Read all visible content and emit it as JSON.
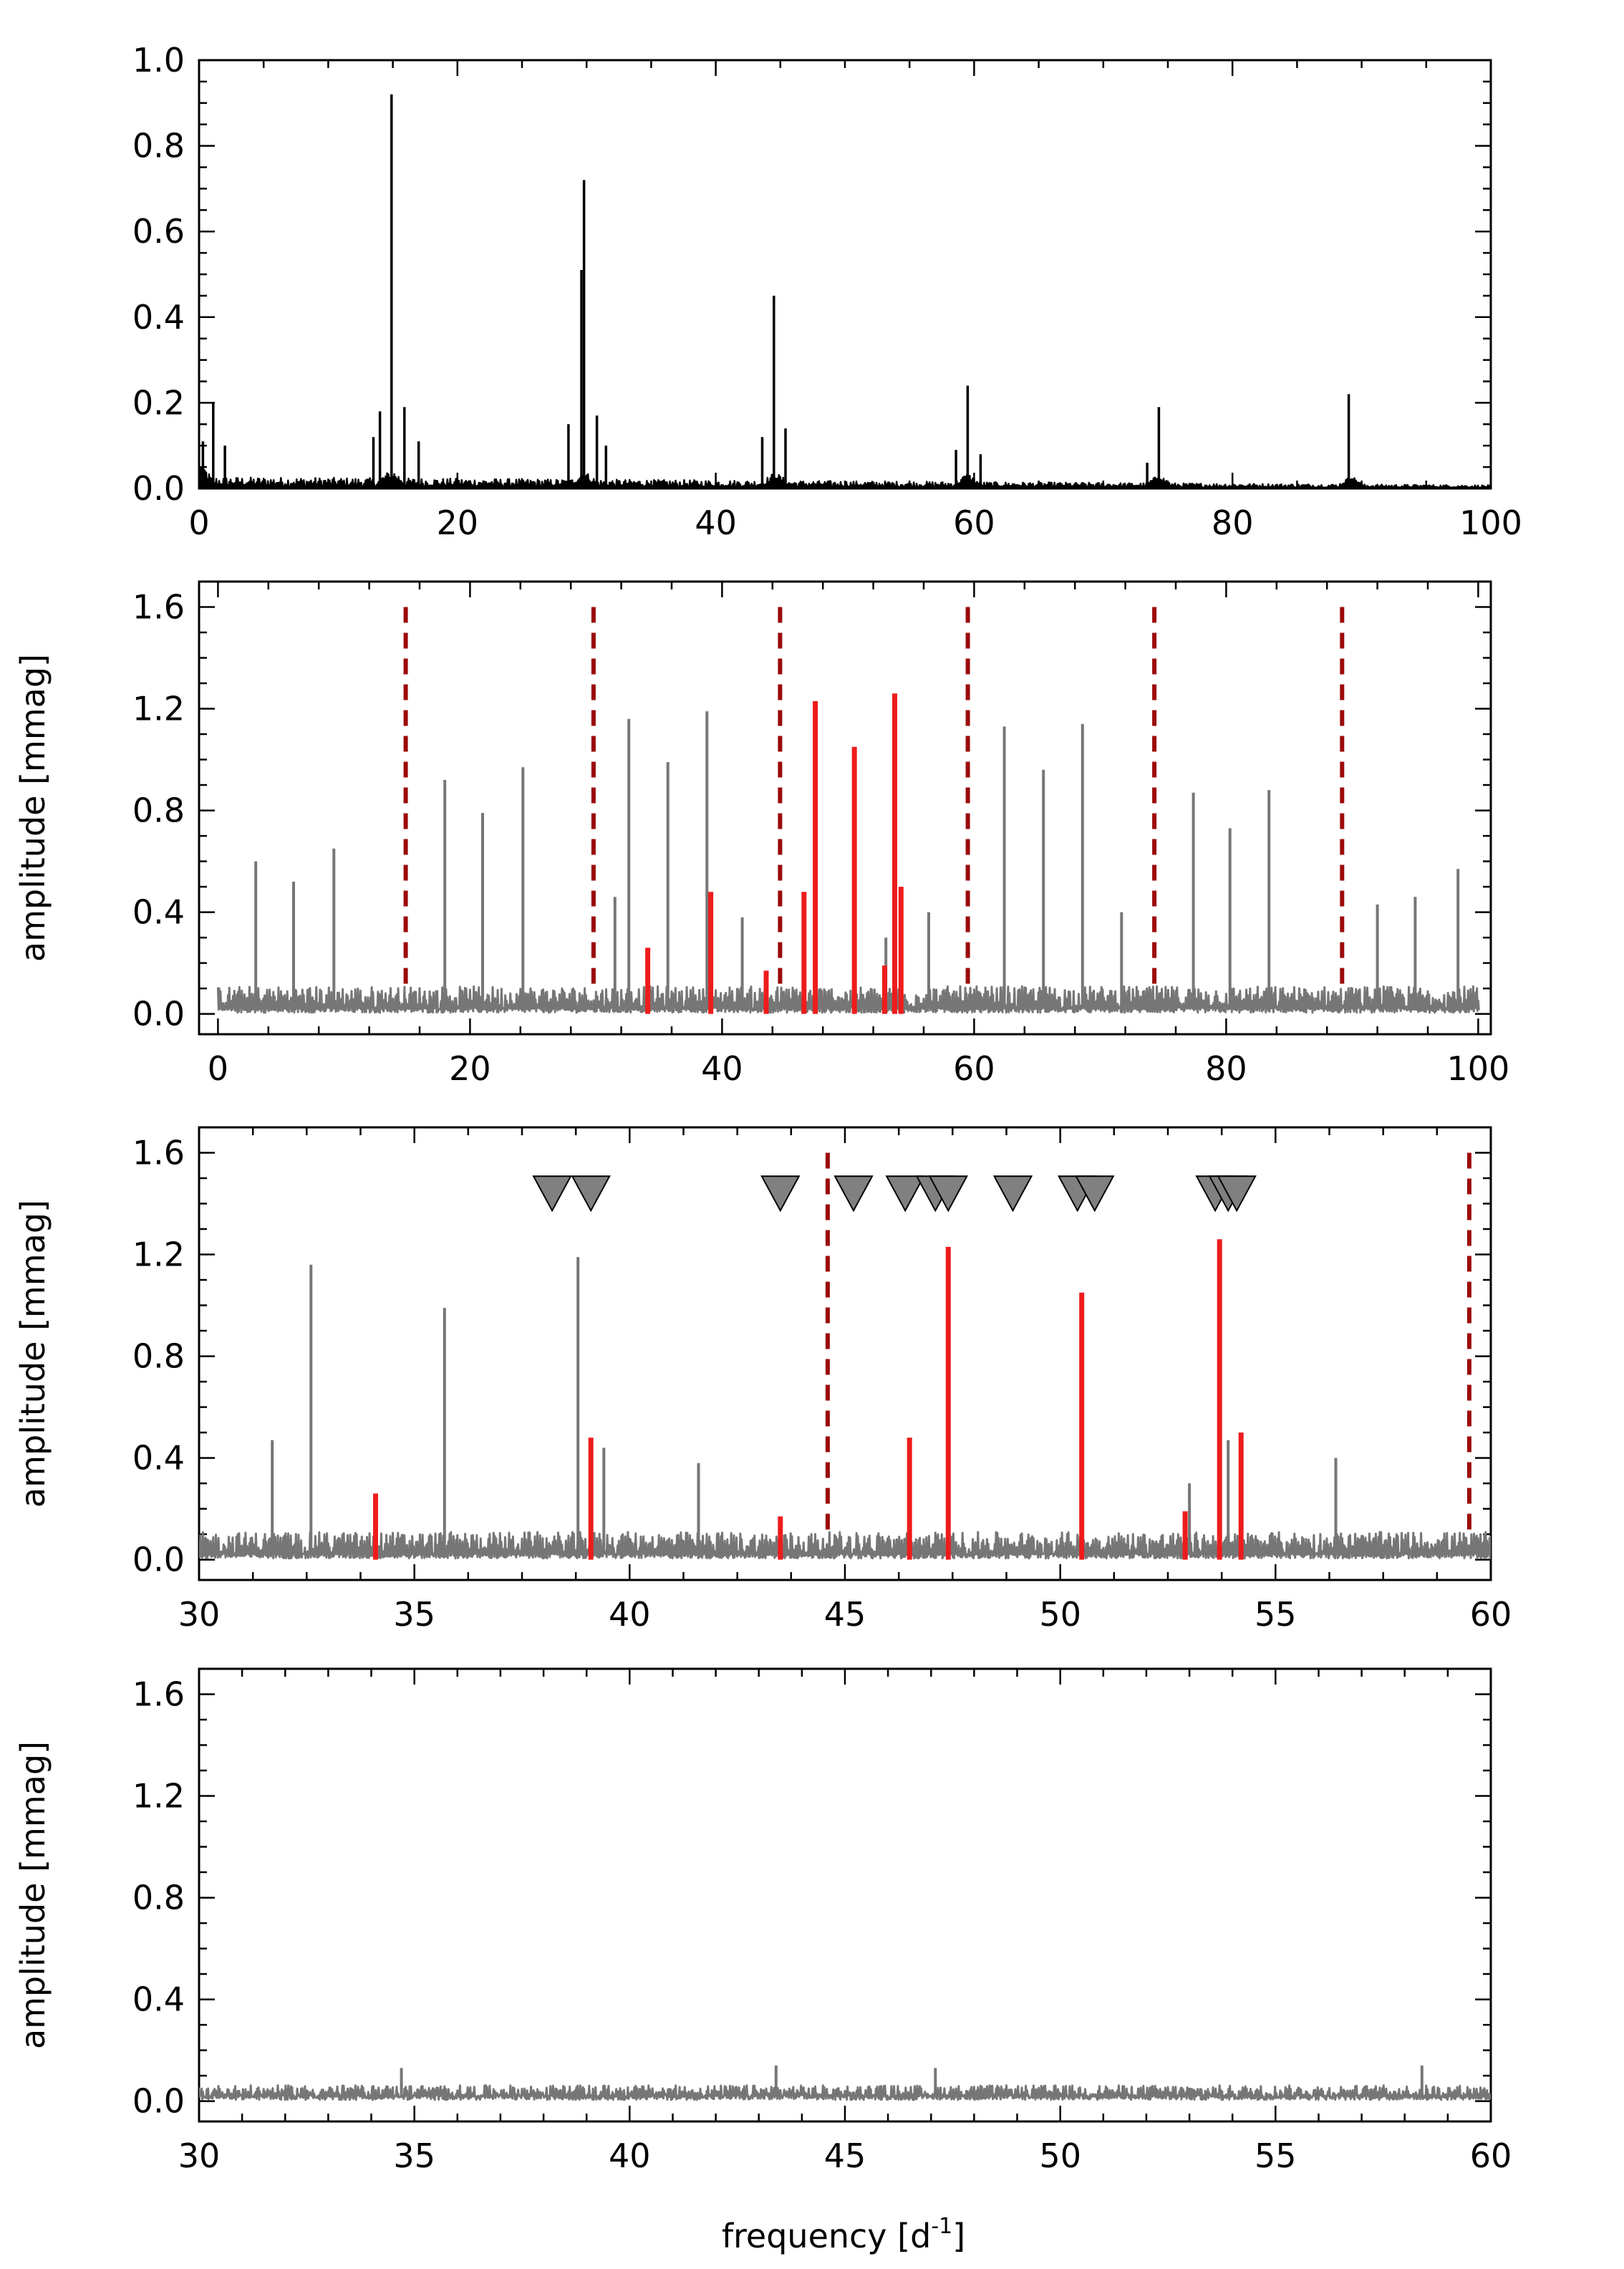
{
  "figure": {
    "xlabel_main": "frequency [d",
    "xlabel_sup": "-1",
    "xlabel_close": "]"
  },
  "chart_data": [
    {
      "type": "line",
      "panel": "top",
      "title": "",
      "xlabel": "",
      "ylabel": "",
      "xlim": [
        0,
        100
      ],
      "ylim": [
        0,
        1.0
      ],
      "xticks": [
        "0",
        "20",
        "40",
        "60",
        "80",
        "100"
      ],
      "yticks": [
        "0.0",
        "0.2",
        "0.4",
        "0.6",
        "0.8",
        "1.0"
      ],
      "colors": {
        "spectrum": "#000000"
      },
      "noise_level": 0.018,
      "peaks": [
        {
          "x": 0.3,
          "y": 0.11
        },
        {
          "x": 1.1,
          "y": 0.2
        },
        {
          "x": 2.0,
          "y": 0.1
        },
        {
          "x": 13.5,
          "y": 0.12
        },
        {
          "x": 14.0,
          "y": 0.18
        },
        {
          "x": 14.9,
          "y": 0.92
        },
        {
          "x": 15.9,
          "y": 0.19
        },
        {
          "x": 17.0,
          "y": 0.11
        },
        {
          "x": 28.6,
          "y": 0.15
        },
        {
          "x": 29.6,
          "y": 0.51
        },
        {
          "x": 29.8,
          "y": 0.72
        },
        {
          "x": 30.8,
          "y": 0.17
        },
        {
          "x": 31.5,
          "y": 0.1
        },
        {
          "x": 43.6,
          "y": 0.12
        },
        {
          "x": 44.5,
          "y": 0.45
        },
        {
          "x": 45.4,
          "y": 0.14
        },
        {
          "x": 58.6,
          "y": 0.09
        },
        {
          "x": 59.5,
          "y": 0.24
        },
        {
          "x": 60.5,
          "y": 0.08
        },
        {
          "x": 73.4,
          "y": 0.06
        },
        {
          "x": 74.3,
          "y": 0.19
        },
        {
          "x": 89.0,
          "y": 0.22
        }
      ]
    },
    {
      "type": "line",
      "panel": "residual-full",
      "title": "",
      "xlabel": "",
      "ylabel": "amplitude [mmag]",
      "xlim": [
        -1.5,
        101
      ],
      "ylim": [
        -0.08,
        1.7
      ],
      "xticks": [
        "0",
        "20",
        "40",
        "60",
        "80",
        "100"
      ],
      "yticks": [
        "0.0",
        "0.4",
        "0.8",
        "1.2",
        "1.6"
      ],
      "colors": {
        "spectrum": "#767676",
        "modes": "#ee1c1c",
        "harmonics": "#9b0a0a"
      },
      "noise_level": 0.07,
      "peaks": [
        {
          "x": 3.0,
          "y": 0.6
        },
        {
          "x": 6.0,
          "y": 0.52
        },
        {
          "x": 9.2,
          "y": 0.65
        },
        {
          "x": 18.0,
          "y": 0.92
        },
        {
          "x": 21.0,
          "y": 0.79
        },
        {
          "x": 24.2,
          "y": 0.97
        },
        {
          "x": 31.5,
          "y": 0.46
        },
        {
          "x": 32.6,
          "y": 1.16
        },
        {
          "x": 35.7,
          "y": 0.99
        },
        {
          "x": 38.8,
          "y": 1.19
        },
        {
          "x": 41.6,
          "y": 0.38
        },
        {
          "x": 53.0,
          "y": 0.3
        },
        {
          "x": 56.4,
          "y": 0.4
        },
        {
          "x": 62.4,
          "y": 1.13
        },
        {
          "x": 65.5,
          "y": 0.96
        },
        {
          "x": 68.6,
          "y": 1.14
        },
        {
          "x": 71.7,
          "y": 0.4
        },
        {
          "x": 77.4,
          "y": 0.87
        },
        {
          "x": 80.3,
          "y": 0.73
        },
        {
          "x": 83.4,
          "y": 0.88
        },
        {
          "x": 92.0,
          "y": 0.43
        },
        {
          "x": 95.0,
          "y": 0.46
        },
        {
          "x": 98.4,
          "y": 0.57
        }
      ],
      "modes": [
        {
          "x": 34.1,
          "y": 0.26
        },
        {
          "x": 39.1,
          "y": 0.48
        },
        {
          "x": 43.5,
          "y": 0.17
        },
        {
          "x": 46.5,
          "y": 0.48
        },
        {
          "x": 47.4,
          "y": 1.23
        },
        {
          "x": 50.5,
          "y": 1.05
        },
        {
          "x": 52.9,
          "y": 0.19
        },
        {
          "x": 53.7,
          "y": 1.26
        },
        {
          "x": 54.2,
          "y": 0.5
        }
      ],
      "harmonics": [
        14.9,
        29.8,
        44.6,
        59.5,
        74.3,
        89.2
      ]
    },
    {
      "type": "line",
      "panel": "residual-zoom",
      "title": "",
      "xlabel": "",
      "ylabel": "amplitude [mmag]",
      "xlim": [
        30,
        60
      ],
      "ylim": [
        -0.08,
        1.7
      ],
      "xticks": [
        "30",
        "35",
        "40",
        "45",
        "50",
        "55",
        "60"
      ],
      "yticks": [
        "0.0",
        "0.4",
        "0.8",
        "1.2",
        "1.6"
      ],
      "colors": {
        "spectrum": "#767676",
        "modes": "#ee1c1c",
        "harmonics": "#9b0a0a",
        "markers": "#808080"
      },
      "noise_level": 0.07,
      "peaks": [
        {
          "x": 31.7,
          "y": 0.47
        },
        {
          "x": 32.6,
          "y": 1.16
        },
        {
          "x": 35.7,
          "y": 0.99
        },
        {
          "x": 38.8,
          "y": 1.19
        },
        {
          "x": 39.4,
          "y": 0.44
        },
        {
          "x": 41.6,
          "y": 0.38
        },
        {
          "x": 53.0,
          "y": 0.3
        },
        {
          "x": 53.9,
          "y": 0.47
        },
        {
          "x": 56.4,
          "y": 0.4
        }
      ],
      "modes": [
        {
          "x": 34.1,
          "y": 0.26
        },
        {
          "x": 39.1,
          "y": 0.48
        },
        {
          "x": 43.5,
          "y": 0.17
        },
        {
          "x": 46.5,
          "y": 0.48
        },
        {
          "x": 47.4,
          "y": 1.23
        },
        {
          "x": 50.5,
          "y": 1.05
        },
        {
          "x": 52.9,
          "y": 0.19
        },
        {
          "x": 53.7,
          "y": 1.26
        },
        {
          "x": 54.2,
          "y": 0.5
        }
      ],
      "harmonics": [
        44.6,
        59.5
      ],
      "markers": [
        38.2,
        39.1,
        43.5,
        45.2,
        46.4,
        47.1,
        47.4,
        48.9,
        50.4,
        50.8,
        53.6,
        53.9,
        54.1
      ]
    },
    {
      "type": "line",
      "panel": "final-residual",
      "title": "",
      "xlabel": "frequency [d-1]",
      "ylabel": "amplitude [mmag]",
      "xlim": [
        30,
        60
      ],
      "ylim": [
        -0.08,
        1.7
      ],
      "xticks": [
        "30",
        "35",
        "40",
        "45",
        "50",
        "55",
        "60"
      ],
      "yticks": [
        "0.0",
        "0.4",
        "0.8",
        "1.2",
        "1.6"
      ],
      "colors": {
        "spectrum": "#767676"
      },
      "noise_level": 0.04,
      "peaks": [
        {
          "x": 34.7,
          "y": 0.13
        },
        {
          "x": 43.4,
          "y": 0.14
        },
        {
          "x": 47.1,
          "y": 0.13
        },
        {
          "x": 58.4,
          "y": 0.14
        }
      ]
    }
  ]
}
